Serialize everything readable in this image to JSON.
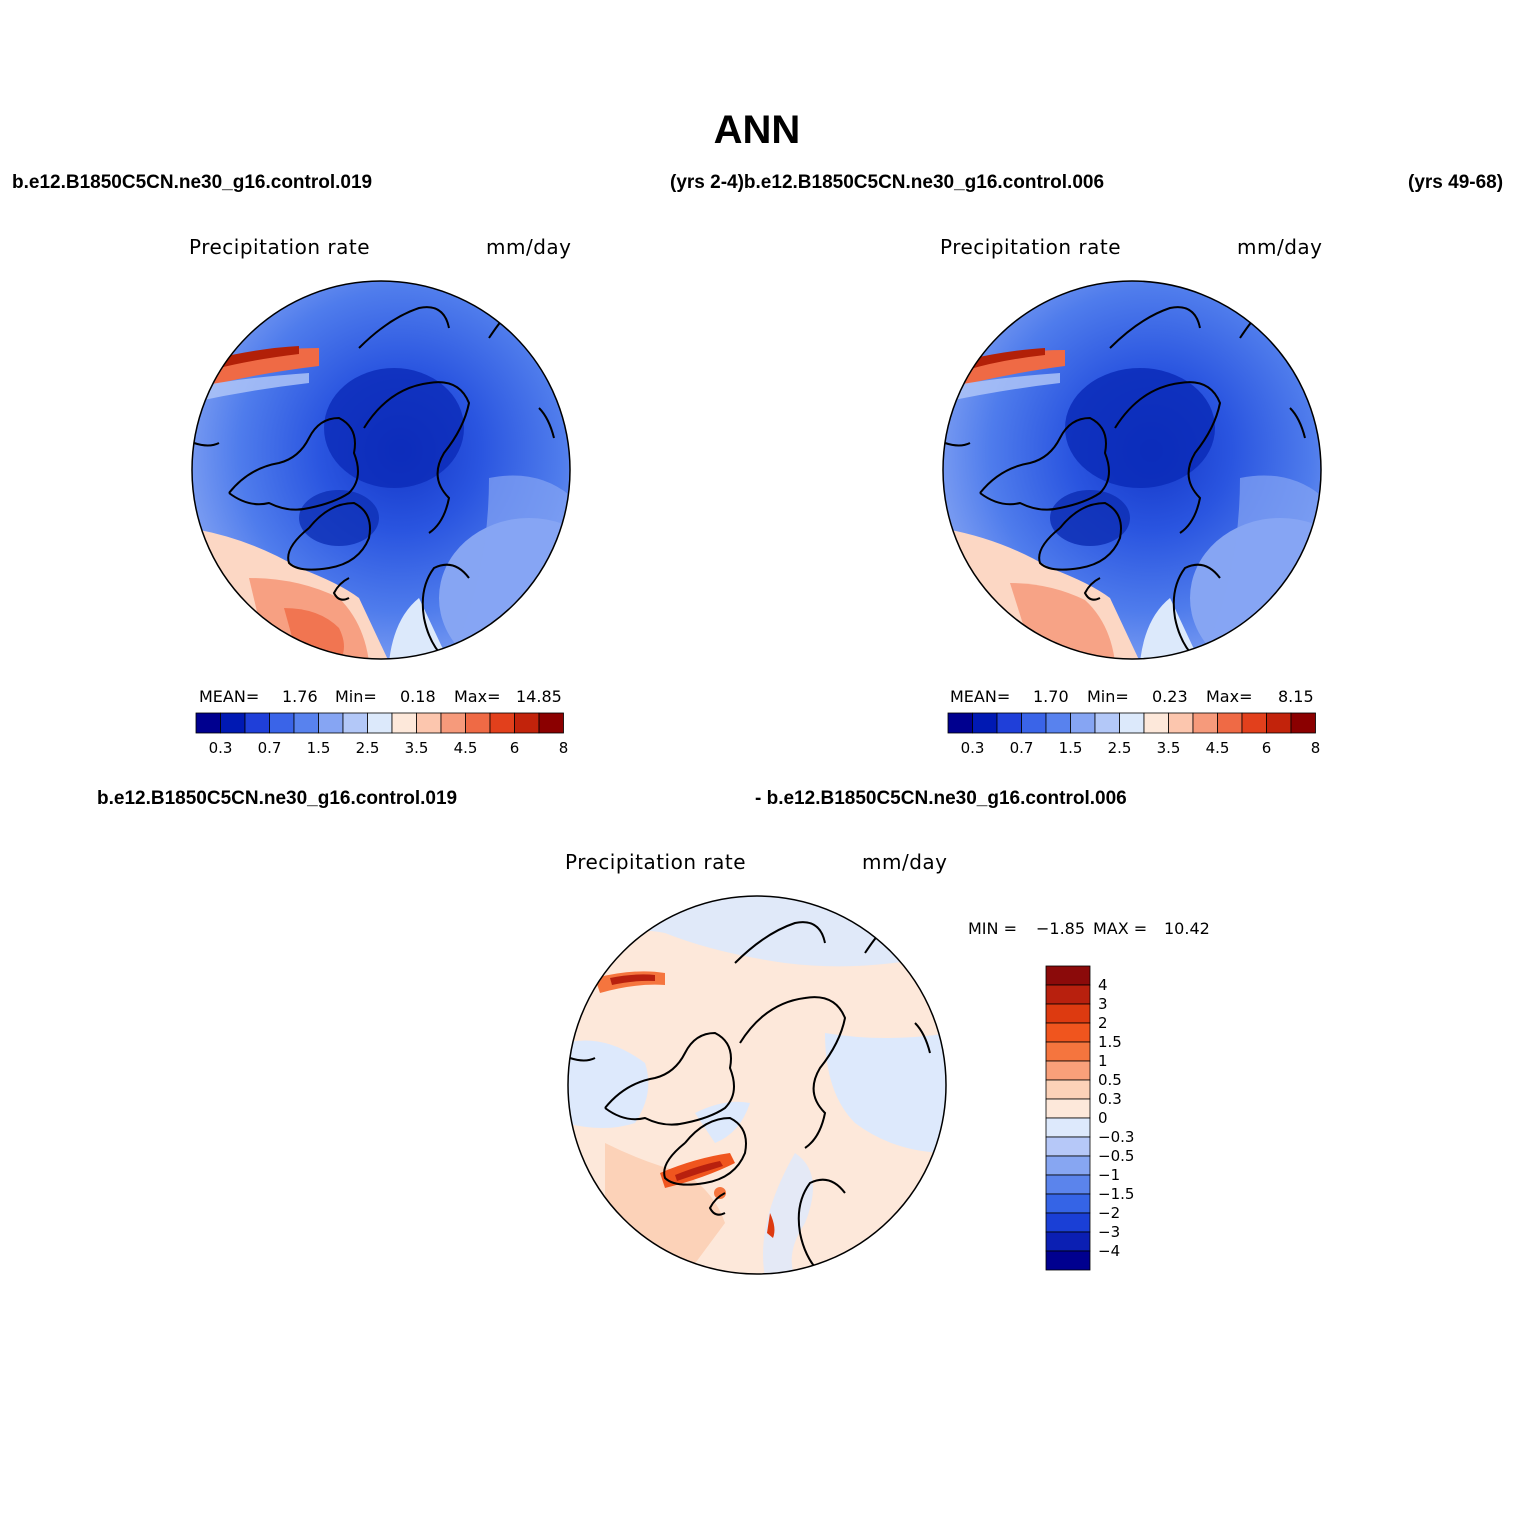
{
  "title": "ANN",
  "headers": {
    "top_left_case": "b.e12.B1850C5CN.ne30_g16.control.019",
    "top_right_case": "(yrs 2-4)b.e12.B1850C5CN.ne30_g16.control.006",
    "top_right_years": "(yrs 49-68)",
    "bottom_left_case": "b.e12.B1850C5CN.ne30_g16.control.019",
    "bottom_right_case": "- b.e12.B1850C5CN.ne30_g16.control.006"
  },
  "panels": [
    {
      "variable": "Precipitation  rate",
      "units": "mm/day",
      "stats": {
        "mean_label": "MEAN=",
        "mean": "1.76",
        "min_label": "Min=",
        "min": "0.18",
        "max_label": "Max=",
        "max": "14.85"
      }
    },
    {
      "variable": "Precipitation  rate",
      "units": "mm/day",
      "stats": {
        "mean_label": "MEAN=",
        "mean": "1.70",
        "min_label": "Min=",
        "min": "0.23",
        "max_label": "Max=",
        "max": "8.15"
      }
    },
    {
      "variable": "Precipitation  rate",
      "units": "mm/day",
      "stats": {
        "min_label": "MIN =",
        "min": "−1.85",
        "max_label": "MAX =",
        "max": "10.42"
      }
    }
  ],
  "colorbar_main": {
    "colors": [
      "#00008f",
      "#0019b3",
      "#1f3fd9",
      "#3a64e8",
      "#5882ee",
      "#86a5f3",
      "#b3c8f8",
      "#dce9fb",
      "#fde8da",
      "#fcc6ae",
      "#f69a7b",
      "#ef6a45",
      "#e2401c",
      "#c2230b",
      "#8b0000"
    ],
    "tick_labels": [
      "0.3",
      "0.7",
      "1.5",
      "2.5",
      "3.5",
      "4.5",
      "6",
      "8"
    ]
  },
  "colorbar_diff": {
    "colors": [
      "#8b0a0a",
      "#b8200e",
      "#dd3a10",
      "#f0551e",
      "#f5753e",
      "#f9a07a",
      "#fcd2b8",
      "#fde8da",
      "#dde9fc",
      "#b6c8f8",
      "#87a6f2",
      "#5b84ec",
      "#3564e6",
      "#1a3fd6",
      "#0b1fb3",
      "#00008f"
    ],
    "tick_labels": [
      "4",
      "3",
      "2",
      "1.5",
      "1",
      "0.5",
      "0.3",
      "0",
      "−0.3",
      "−0.5",
      "−1",
      "−1.5",
      "−2",
      "−3",
      "−4"
    ]
  }
}
